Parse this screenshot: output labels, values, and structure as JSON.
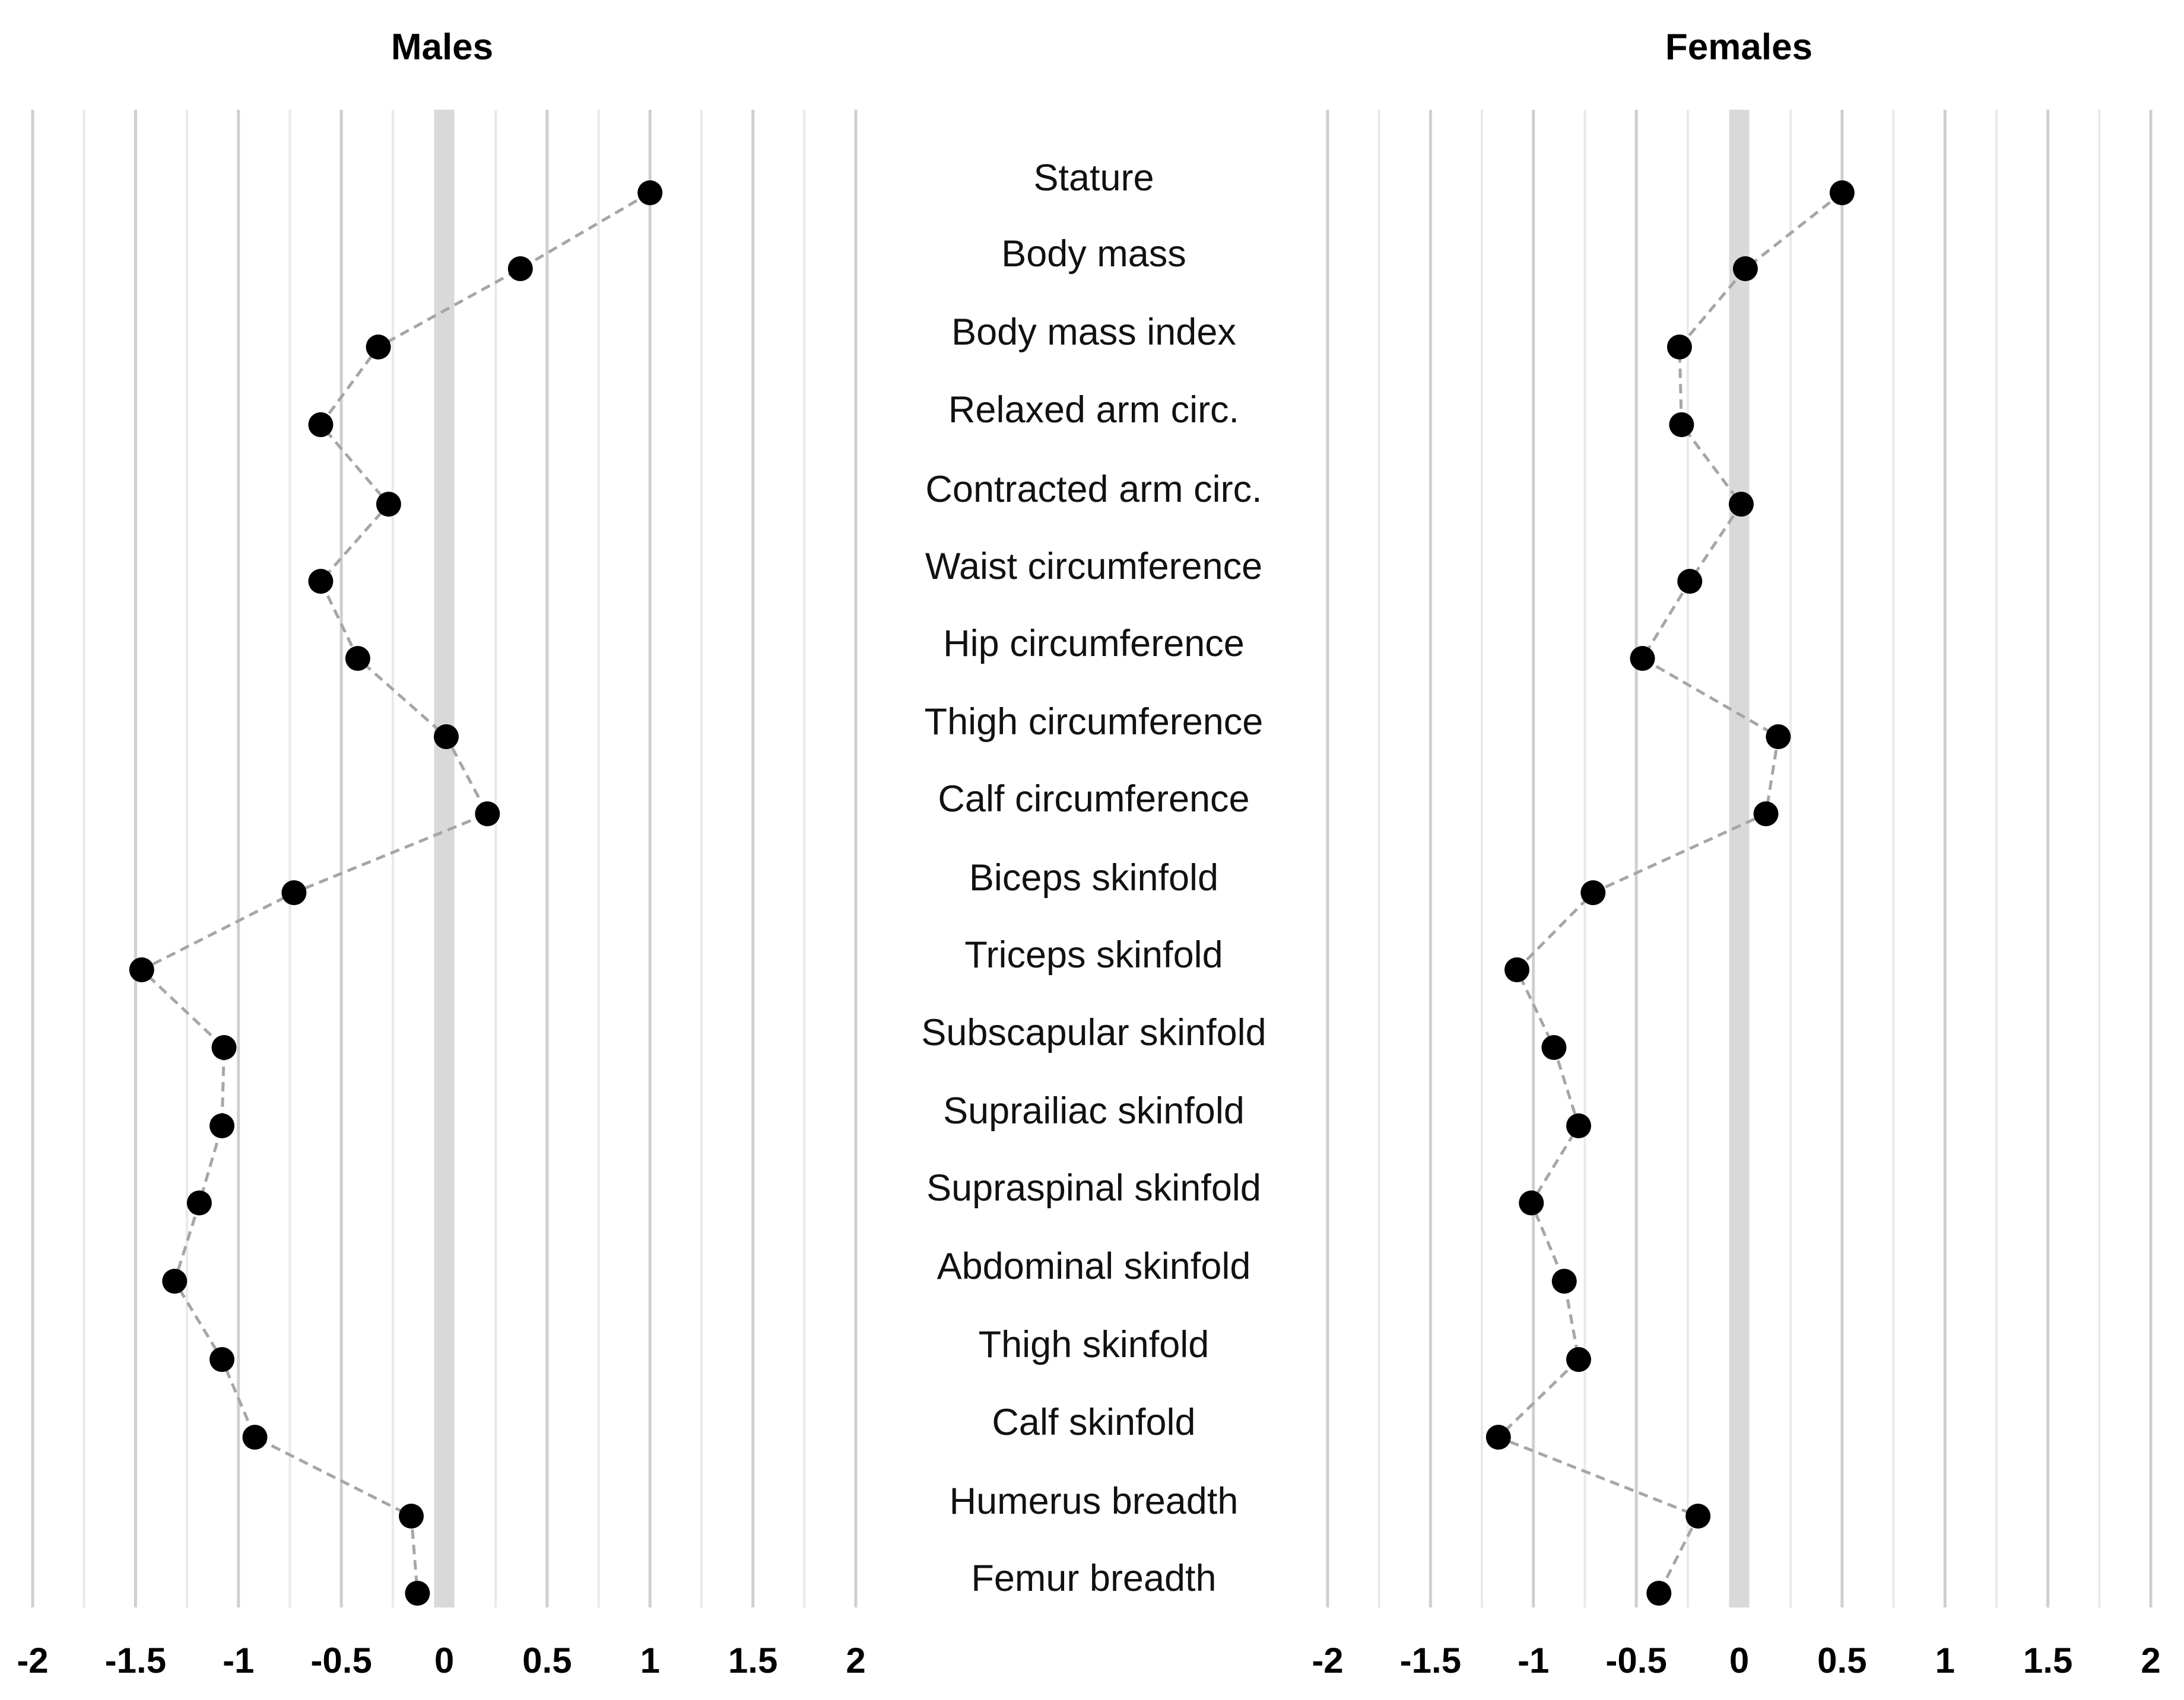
{
  "chart_data": {
    "type": "scatter",
    "variables": [
      "Stature",
      "Body mass",
      "Body mass index",
      "Relaxed arm circ.",
      "Contracted arm circ.",
      "Waist circumference",
      "Hip circumference",
      "Thigh circumference",
      "Calf circumference",
      "Biceps skinfold",
      "Triceps skinfold",
      "Subscapular skinfold",
      "Suprailiac skinfold",
      "Supraspinal skinfold",
      "Abdominal skinfold",
      "Thigh skinfold",
      "Calf skinfold",
      "Humerus breadth",
      "Femur breadth"
    ],
    "xlim": [
      -2,
      2
    ],
    "x_ticks": [
      "-2",
      "-1.5",
      "-1",
      "-0.5",
      "0",
      "0.5",
      "1",
      "1.5",
      "2"
    ],
    "panels": [
      {
        "title": "Males",
        "values": [
          1.0,
          0.37,
          -0.32,
          -0.6,
          -0.27,
          -0.6,
          -0.42,
          0.01,
          0.21,
          -0.73,
          -1.47,
          -1.07,
          -1.08,
          -1.19,
          -1.31,
          -1.08,
          -0.92,
          -0.16,
          -0.13
        ]
      },
      {
        "title": "Females",
        "values": [
          0.5,
          0.03,
          -0.29,
          -0.28,
          0.01,
          -0.24,
          -0.47,
          0.19,
          0.13,
          -0.71,
          -1.08,
          -0.9,
          -0.78,
          -1.01,
          -0.85,
          -0.78,
          -1.17,
          -0.2,
          -0.39
        ]
      }
    ],
    "grid": true,
    "series_style": "dashed-line-with-markers",
    "colors": {
      "marker": "#000000",
      "line": "#a6a6a6",
      "grid_major": "#cfcfcf",
      "grid_minor": "#e9e9e9",
      "zero_band": "#d9d9d9"
    }
  }
}
